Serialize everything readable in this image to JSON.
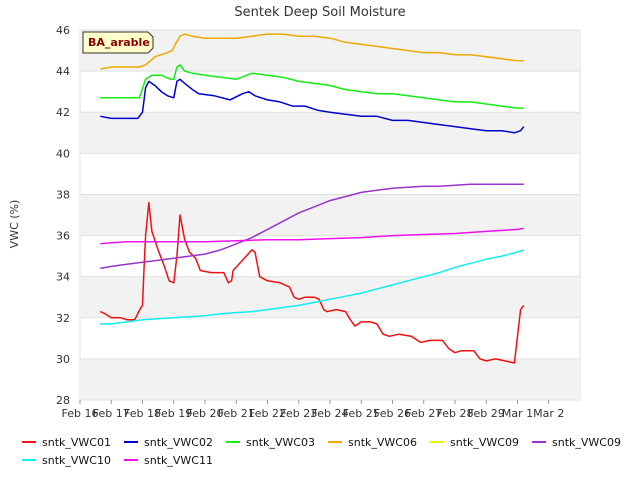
{
  "chart_data": {
    "type": "line",
    "title": "Sentek Deep Soil Moisture",
    "badge": "BA_arable",
    "xlabel": "",
    "ylabel": "VWC (%)",
    "ylim": [
      28,
      46
    ],
    "yticks": [
      28,
      30,
      32,
      34,
      36,
      38,
      40,
      42,
      44,
      46
    ],
    "xlim": [
      0,
      16
    ],
    "xticks": [
      {
        "v": 0,
        "label": "Feb 16"
      },
      {
        "v": 1,
        "label": "Feb 17"
      },
      {
        "v": 2,
        "label": "Feb 18"
      },
      {
        "v": 3,
        "label": "Feb 19"
      },
      {
        "v": 4,
        "label": "Feb 20"
      },
      {
        "v": 5,
        "label": "Feb 21"
      },
      {
        "v": 6,
        "label": "Feb 22"
      },
      {
        "v": 7,
        "label": "Feb 23"
      },
      {
        "v": 8,
        "label": "Feb 24"
      },
      {
        "v": 9,
        "label": "Feb 25"
      },
      {
        "v": 10,
        "label": "Feb 26"
      },
      {
        "v": 11,
        "label": "Feb 27"
      },
      {
        "v": 12,
        "label": "Feb 28"
      },
      {
        "v": 13,
        "label": "Feb 29"
      },
      {
        "v": 14,
        "label": "Mar 1"
      },
      {
        "v": 15,
        "label": "Mar 2"
      }
    ],
    "grid": "horizontal bands",
    "legend_position": "bottom",
    "series": [
      {
        "name": "sntk_VWC01",
        "color": "#ee1111",
        "points": [
          [
            0.65,
            32.3
          ],
          [
            0.8,
            32.2
          ],
          [
            1.0,
            32.0
          ],
          [
            1.3,
            32.0
          ],
          [
            1.5,
            31.9
          ],
          [
            1.75,
            31.9
          ],
          [
            1.95,
            32.5
          ],
          [
            2.0,
            32.6
          ],
          [
            2.05,
            34.5
          ],
          [
            2.1,
            36.0
          ],
          [
            2.2,
            37.6
          ],
          [
            2.3,
            36.2
          ],
          [
            2.5,
            35.3
          ],
          [
            2.7,
            34.5
          ],
          [
            2.85,
            33.8
          ],
          [
            3.0,
            33.7
          ],
          [
            3.1,
            35.0
          ],
          [
            3.2,
            37.0
          ],
          [
            3.35,
            35.8
          ],
          [
            3.5,
            35.2
          ],
          [
            3.7,
            34.9
          ],
          [
            3.85,
            34.3
          ],
          [
            4.2,
            34.2
          ],
          [
            4.6,
            34.2
          ],
          [
            4.75,
            33.7
          ],
          [
            4.85,
            33.8
          ],
          [
            4.9,
            34.3
          ],
          [
            5.2,
            34.8
          ],
          [
            5.5,
            35.3
          ],
          [
            5.6,
            35.2
          ],
          [
            5.75,
            34.0
          ],
          [
            6.0,
            33.8
          ],
          [
            6.4,
            33.7
          ],
          [
            6.7,
            33.5
          ],
          [
            6.85,
            33.0
          ],
          [
            7.0,
            32.9
          ],
          [
            7.2,
            33.0
          ],
          [
            7.5,
            33.0
          ],
          [
            7.65,
            32.9
          ],
          [
            7.8,
            32.4
          ],
          [
            7.9,
            32.3
          ],
          [
            8.2,
            32.4
          ],
          [
            8.5,
            32.3
          ],
          [
            8.65,
            31.9
          ],
          [
            8.8,
            31.6
          ],
          [
            9.0,
            31.8
          ],
          [
            9.3,
            31.8
          ],
          [
            9.5,
            31.7
          ],
          [
            9.7,
            31.2
          ],
          [
            9.9,
            31.1
          ],
          [
            10.2,
            31.2
          ],
          [
            10.6,
            31.1
          ],
          [
            10.9,
            30.8
          ],
          [
            11.2,
            30.9
          ],
          [
            11.6,
            30.9
          ],
          [
            11.8,
            30.5
          ],
          [
            12.0,
            30.3
          ],
          [
            12.2,
            30.4
          ],
          [
            12.6,
            30.4
          ],
          [
            12.8,
            30.0
          ],
          [
            13.0,
            29.9
          ],
          [
            13.3,
            30.0
          ],
          [
            13.6,
            29.9
          ],
          [
            13.9,
            29.8
          ],
          [
            14.1,
            32.4
          ],
          [
            14.2,
            32.6
          ]
        ]
      },
      {
        "name": "sntk_VWC02",
        "color": "#0000cc",
        "points": [
          [
            0.65,
            41.8
          ],
          [
            1.0,
            41.7
          ],
          [
            1.5,
            41.7
          ],
          [
            1.85,
            41.7
          ],
          [
            2.0,
            42.0
          ],
          [
            2.1,
            43.2
          ],
          [
            2.2,
            43.5
          ],
          [
            2.4,
            43.3
          ],
          [
            2.6,
            43.0
          ],
          [
            2.8,
            42.8
          ],
          [
            3.0,
            42.7
          ],
          [
            3.1,
            43.5
          ],
          [
            3.2,
            43.6
          ],
          [
            3.35,
            43.4
          ],
          [
            3.6,
            43.1
          ],
          [
            3.8,
            42.9
          ],
          [
            4.3,
            42.8
          ],
          [
            4.8,
            42.6
          ],
          [
            5.2,
            42.9
          ],
          [
            5.4,
            43.0
          ],
          [
            5.6,
            42.8
          ],
          [
            6.0,
            42.6
          ],
          [
            6.4,
            42.5
          ],
          [
            6.8,
            42.3
          ],
          [
            7.2,
            42.3
          ],
          [
            7.6,
            42.1
          ],
          [
            8.0,
            42.0
          ],
          [
            8.5,
            41.9
          ],
          [
            9.0,
            41.8
          ],
          [
            9.5,
            41.8
          ],
          [
            10.0,
            41.6
          ],
          [
            10.5,
            41.6
          ],
          [
            11.0,
            41.5
          ],
          [
            11.5,
            41.4
          ],
          [
            12.0,
            41.3
          ],
          [
            12.5,
            41.2
          ],
          [
            13.0,
            41.1
          ],
          [
            13.5,
            41.1
          ],
          [
            13.9,
            41.0
          ],
          [
            14.1,
            41.1
          ],
          [
            14.2,
            41.3
          ]
        ]
      },
      {
        "name": "sntk_VWC03",
        "color": "#11ee11",
        "points": [
          [
            0.65,
            42.7
          ],
          [
            1.0,
            42.7
          ],
          [
            1.5,
            42.7
          ],
          [
            1.9,
            42.7
          ],
          [
            2.1,
            43.6
          ],
          [
            2.3,
            43.8
          ],
          [
            2.6,
            43.8
          ],
          [
            2.9,
            43.6
          ],
          [
            3.0,
            43.6
          ],
          [
            3.1,
            44.2
          ],
          [
            3.2,
            44.3
          ],
          [
            3.35,
            44.0
          ],
          [
            3.6,
            43.9
          ],
          [
            4.0,
            43.8
          ],
          [
            4.5,
            43.7
          ],
          [
            5.0,
            43.6
          ],
          [
            5.5,
            43.9
          ],
          [
            6.0,
            43.8
          ],
          [
            6.5,
            43.7
          ],
          [
            7.0,
            43.5
          ],
          [
            7.5,
            43.4
          ],
          [
            8.0,
            43.3
          ],
          [
            8.5,
            43.1
          ],
          [
            9.0,
            43.0
          ],
          [
            9.5,
            42.9
          ],
          [
            10.0,
            42.9
          ],
          [
            10.5,
            42.8
          ],
          [
            11.0,
            42.7
          ],
          [
            11.5,
            42.6
          ],
          [
            12.0,
            42.5
          ],
          [
            12.5,
            42.5
          ],
          [
            13.0,
            42.4
          ],
          [
            13.5,
            42.3
          ],
          [
            14.0,
            42.2
          ],
          [
            14.2,
            42.2
          ]
        ]
      },
      {
        "name": "sntk_VWC06",
        "color": "#eea800",
        "points": [
          [
            0.65,
            44.1
          ],
          [
            1.0,
            44.2
          ],
          [
            1.5,
            44.2
          ],
          [
            1.9,
            44.2
          ],
          [
            2.1,
            44.3
          ],
          [
            2.4,
            44.7
          ],
          [
            2.8,
            44.9
          ],
          [
            2.95,
            45.0
          ],
          [
            3.05,
            45.3
          ],
          [
            3.2,
            45.7
          ],
          [
            3.35,
            45.8
          ],
          [
            3.6,
            45.7
          ],
          [
            4.0,
            45.6
          ],
          [
            4.6,
            45.6
          ],
          [
            5.0,
            45.6
          ],
          [
            5.5,
            45.7
          ],
          [
            6.0,
            45.8
          ],
          [
            6.5,
            45.8
          ],
          [
            7.0,
            45.7
          ],
          [
            7.5,
            45.7
          ],
          [
            8.0,
            45.6
          ],
          [
            8.5,
            45.4
          ],
          [
            9.0,
            45.3
          ],
          [
            9.5,
            45.2
          ],
          [
            10.0,
            45.1
          ],
          [
            10.5,
            45.0
          ],
          [
            11.0,
            44.9
          ],
          [
            11.5,
            44.9
          ],
          [
            12.0,
            44.8
          ],
          [
            12.5,
            44.8
          ],
          [
            13.0,
            44.7
          ],
          [
            13.5,
            44.6
          ],
          [
            14.0,
            44.5
          ],
          [
            14.2,
            44.5
          ]
        ]
      },
      {
        "name": "sntk_VWC09",
        "color": "#eeee11",
        "points": []
      },
      {
        "name": "sntk_VWC09",
        "color": "#9933cc",
        "points": [
          [
            0.65,
            34.4
          ],
          [
            1.0,
            34.5
          ],
          [
            1.5,
            34.6
          ],
          [
            2.0,
            34.7
          ],
          [
            2.5,
            34.8
          ],
          [
            3.0,
            34.9
          ],
          [
            3.5,
            35.0
          ],
          [
            4.0,
            35.1
          ],
          [
            4.5,
            35.3
          ],
          [
            5.0,
            35.6
          ],
          [
            5.5,
            35.9
          ],
          [
            6.0,
            36.3
          ],
          [
            6.5,
            36.7
          ],
          [
            7.0,
            37.1
          ],
          [
            7.5,
            37.4
          ],
          [
            8.0,
            37.7
          ],
          [
            8.5,
            37.9
          ],
          [
            9.0,
            38.1
          ],
          [
            9.5,
            38.2
          ],
          [
            10.0,
            38.3
          ],
          [
            10.5,
            38.35
          ],
          [
            11.0,
            38.4
          ],
          [
            11.5,
            38.4
          ],
          [
            12.0,
            38.45
          ],
          [
            12.5,
            38.5
          ],
          [
            13.0,
            38.5
          ],
          [
            13.5,
            38.5
          ],
          [
            14.0,
            38.5
          ],
          [
            14.2,
            38.5
          ]
        ]
      },
      {
        "name": "sntk_VWC10",
        "color": "#11eeee",
        "points": [
          [
            0.65,
            31.7
          ],
          [
            1.0,
            31.7
          ],
          [
            1.5,
            31.8
          ],
          [
            2.0,
            31.9
          ],
          [
            2.5,
            31.95
          ],
          [
            3.0,
            32.0
          ],
          [
            3.5,
            32.05
          ],
          [
            4.0,
            32.1
          ],
          [
            4.5,
            32.2
          ],
          [
            5.0,
            32.25
          ],
          [
            5.5,
            32.3
          ],
          [
            6.0,
            32.4
          ],
          [
            6.5,
            32.5
          ],
          [
            7.0,
            32.6
          ],
          [
            7.5,
            32.75
          ],
          [
            8.0,
            32.9
          ],
          [
            8.5,
            33.05
          ],
          [
            9.0,
            33.2
          ],
          [
            9.5,
            33.4
          ],
          [
            10.0,
            33.6
          ],
          [
            10.5,
            33.8
          ],
          [
            11.0,
            34.0
          ],
          [
            11.5,
            34.2
          ],
          [
            12.0,
            34.45
          ],
          [
            12.5,
            34.65
          ],
          [
            13.0,
            34.85
          ],
          [
            13.5,
            35.0
          ],
          [
            14.0,
            35.2
          ],
          [
            14.2,
            35.3
          ]
        ]
      },
      {
        "name": "sntk_VWC11",
        "color": "#ee11ee",
        "points": [
          [
            0.65,
            35.6
          ],
          [
            1.0,
            35.65
          ],
          [
            1.5,
            35.7
          ],
          [
            2.0,
            35.7
          ],
          [
            3.0,
            35.7
          ],
          [
            4.0,
            35.7
          ],
          [
            5.0,
            35.75
          ],
          [
            6.0,
            35.8
          ],
          [
            7.0,
            35.8
          ],
          [
            8.0,
            35.85
          ],
          [
            9.0,
            35.9
          ],
          [
            10.0,
            36.0
          ],
          [
            11.0,
            36.05
          ],
          [
            12.0,
            36.1
          ],
          [
            13.0,
            36.2
          ],
          [
            14.0,
            36.3
          ],
          [
            14.2,
            36.35
          ]
        ]
      }
    ]
  }
}
